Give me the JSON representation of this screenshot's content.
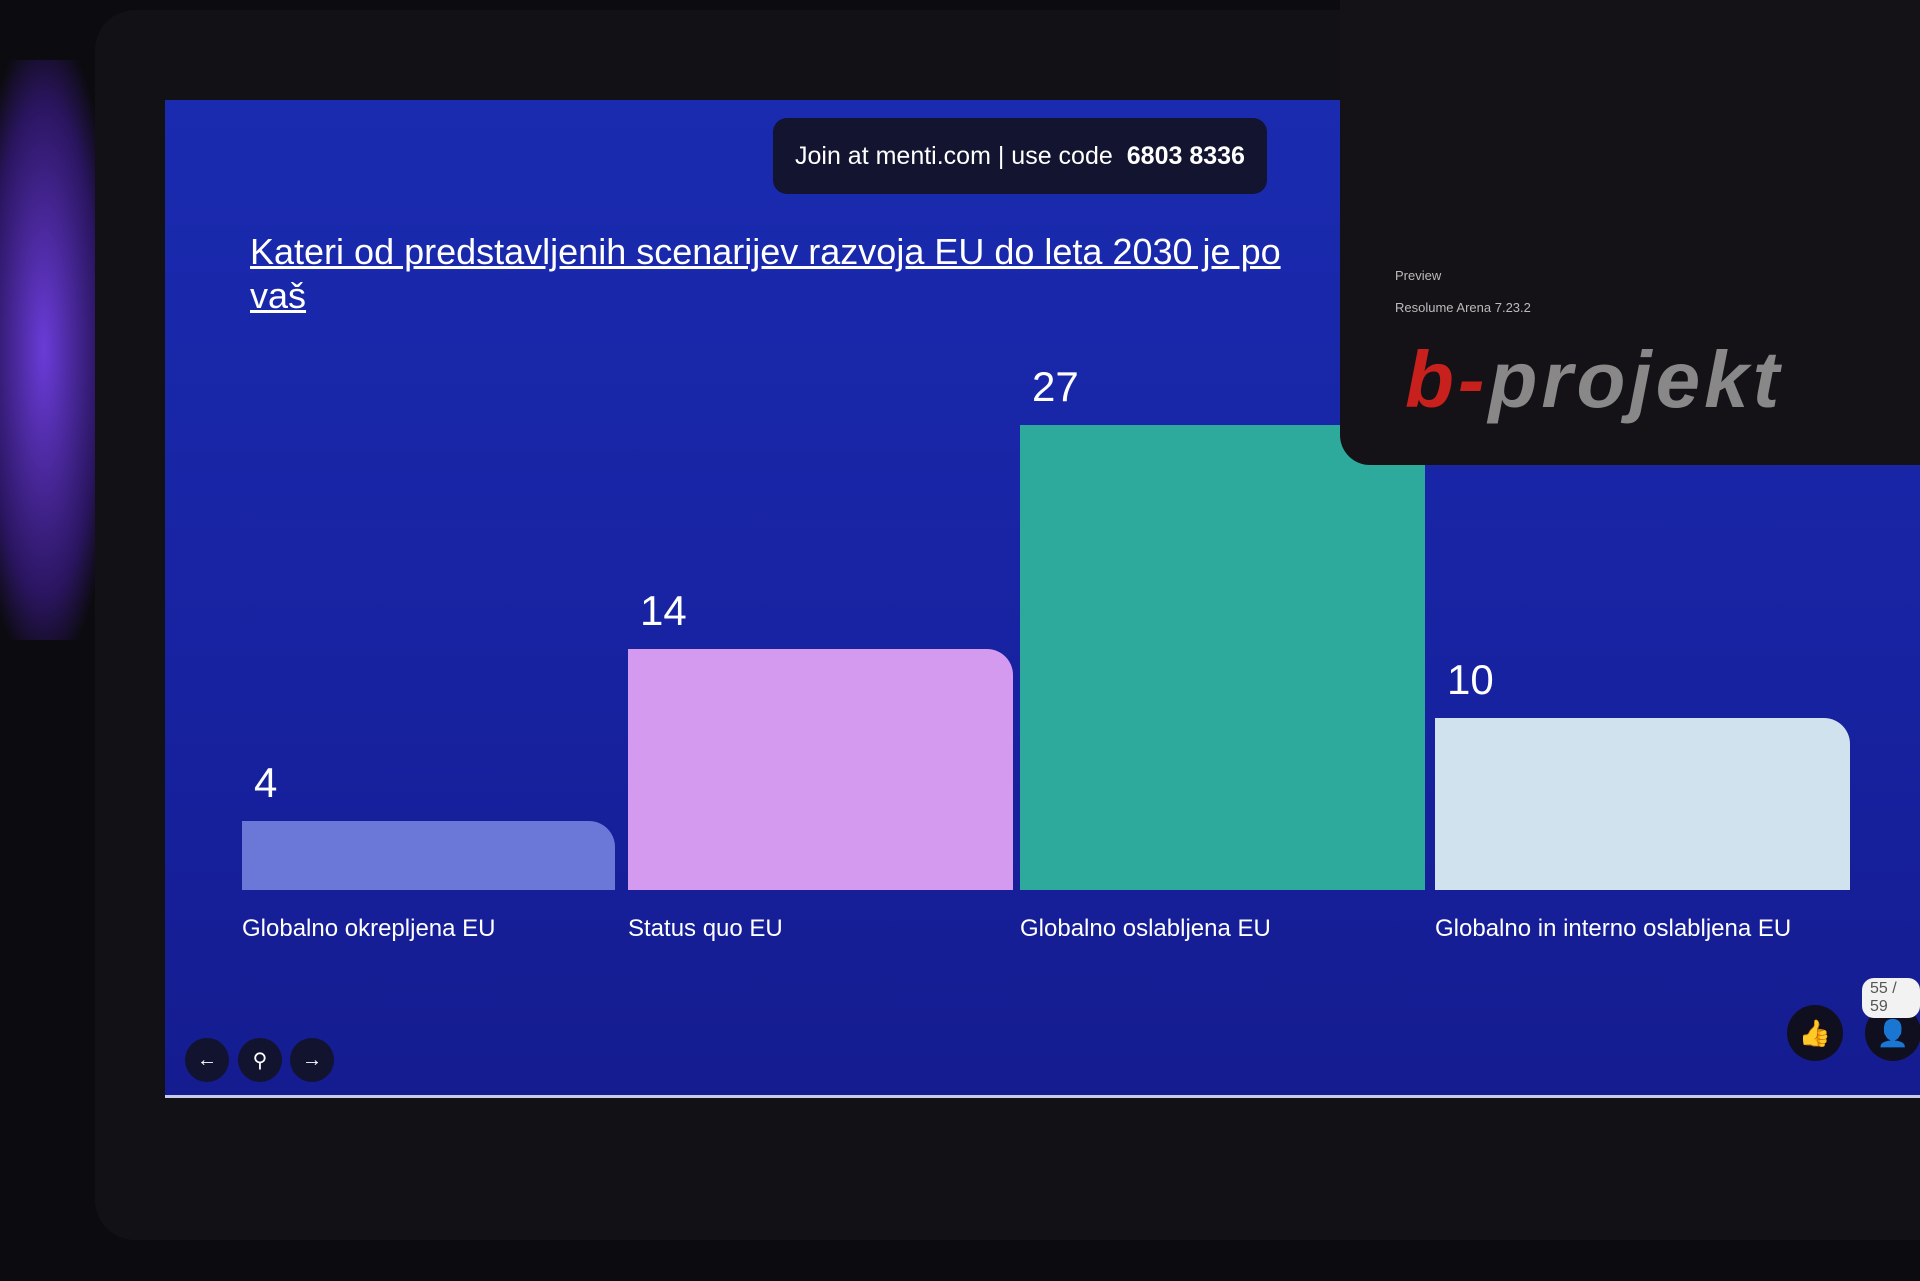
{
  "join": {
    "text": "Join at menti.com | use code",
    "code": "6803 8336"
  },
  "question": "Kateri od predstavljenih scenarijev razvoja EU do leta 2030 je po vaš",
  "chart_data": {
    "type": "bar",
    "title": "Kateri od predstavljenih scenarijev razvoja EU do leta 2030 je po vaš",
    "categories": [
      "Globalno okrepljena EU",
      "Status quo EU",
      "Globalno oslabljena EU",
      "Globalno in interno oslabljena EU"
    ],
    "values": [
      4,
      14,
      27,
      10
    ],
    "colors": [
      "#6b78d8",
      "#d49af0",
      "#2eaa9c",
      "#cfe2ee"
    ],
    "ylim": [
      0,
      27
    ],
    "grid": false
  },
  "controls": {
    "prev_icon": "arrow-left",
    "pin_icon": "location-pin",
    "next_icon": "arrow-right",
    "prev": "←",
    "pin": "⚲",
    "next": "→"
  },
  "reactions": {
    "like": "👍",
    "participants": "👤",
    "count": "55",
    "total": "59",
    "sep": "/"
  },
  "overlay": {
    "line1": "Preview",
    "line2": "Resolume Arena 7.23.2",
    "logo_b": "b-",
    "logo_rest": "projekt"
  }
}
